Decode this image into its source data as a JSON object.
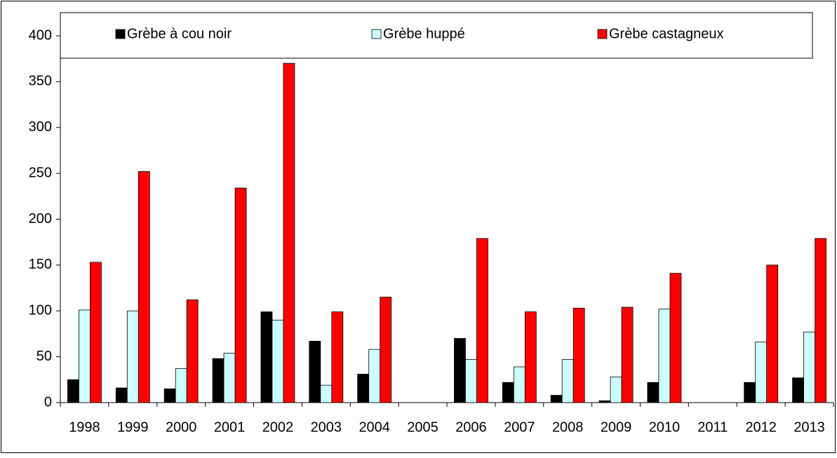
{
  "chart_data": {
    "type": "bar",
    "categories": [
      "1998",
      "1999",
      "2000",
      "2001",
      "2002",
      "2003",
      "2004",
      "2005",
      "2006",
      "2007",
      "2008",
      "2009",
      "2010",
      "2011",
      "2012",
      "2013"
    ],
    "series": [
      {
        "name": "Grèbe à cou noir",
        "color": "#000000",
        "values": [
          25,
          16,
          15,
          48,
          99,
          67,
          31,
          null,
          70,
          22,
          8,
          2,
          22,
          null,
          22,
          27
        ]
      },
      {
        "name": "Grèbe huppé",
        "color": "#ccffff",
        "values": [
          101,
          100,
          37,
          54,
          90,
          19,
          58,
          null,
          47,
          39,
          47,
          28,
          102,
          null,
          66,
          77
        ]
      },
      {
        "name": "Grèbe castagneux",
        "color": "#ff0000",
        "values": [
          153,
          252,
          112,
          234,
          370,
          99,
          115,
          null,
          179,
          99,
          103,
          104,
          141,
          null,
          150,
          179
        ]
      }
    ],
    "ylim": [
      0,
      400
    ],
    "yticks": [
      0,
      50,
      100,
      150,
      200,
      250,
      300,
      350,
      400
    ],
    "legend": "top"
  }
}
